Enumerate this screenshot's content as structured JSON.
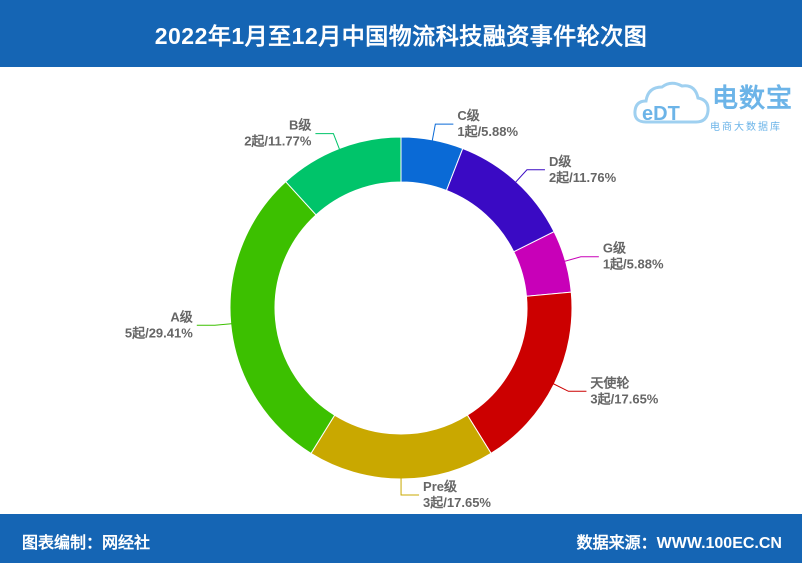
{
  "header": {
    "title": "2022年1月至12月中国物流科技融资事件轮次图"
  },
  "footer": {
    "left": "图表编制：网经社",
    "right": "数据来源：WWW.100EC.CN"
  },
  "watermark": {
    "logo": "eDT",
    "name": "电数宝",
    "subtitle": "电商大数据库"
  },
  "colors": {
    "header_bg": "#1565b4",
    "label_text": "#666666"
  },
  "chart_data": {
    "type": "pie",
    "donut": true,
    "title": "2022年1月至12月中国物流科技融资事件轮次图",
    "start_direction": "top, clockwise",
    "slices": [
      {
        "name": "C级",
        "count": 1,
        "unit": "起",
        "percent": 5.88,
        "value_text": "1起/5.88%",
        "color": "#0a6ad6"
      },
      {
        "name": "D级",
        "count": 2,
        "unit": "起",
        "percent": 11.76,
        "value_text": "2起/11.76%",
        "color": "#3a0ac4"
      },
      {
        "name": "G级",
        "count": 1,
        "unit": "起",
        "percent": 5.88,
        "value_text": "1起/5.88%",
        "color": "#c800b8"
      },
      {
        "name": "天使轮",
        "count": 3,
        "unit": "起",
        "percent": 17.65,
        "value_text": "3起/17.65%",
        "color": "#cc0000"
      },
      {
        "name": "Pre级",
        "count": 3,
        "unit": "起",
        "percent": 17.65,
        "value_text": "3起/17.65%",
        "color": "#c9a800"
      },
      {
        "name": "A级",
        "count": 5,
        "unit": "起",
        "percent": 29.41,
        "value_text": "5起/29.41%",
        "color": "#3cc000"
      },
      {
        "name": "B级",
        "count": 2,
        "unit": "起",
        "percent": 11.77,
        "value_text": "2起/11.77%",
        "color": "#00c46a"
      }
    ]
  }
}
